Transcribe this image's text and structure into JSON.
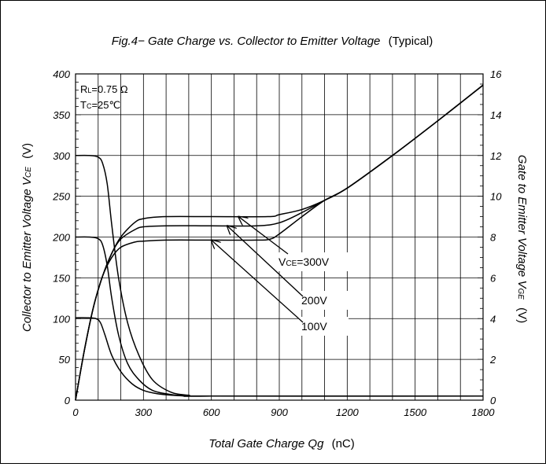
{
  "chart_data": {
    "type": "line",
    "title": "Fig.4− Gate Charge vs. Collector to Emitter Voltage",
    "title_suffix": "(Typical)",
    "xlabel_main": "Total Gate Charge Qg",
    "xlabel_unit": "(nC)",
    "ylabel_left_main": "Collector to Emitter Voltage V",
    "ylabel_left_sub": "CE",
    "ylabel_left_unit": "(V)",
    "ylabel_right_main": "Gate to Emitter Voltage V",
    "ylabel_right_sub": "GE",
    "ylabel_right_unit": "(V)",
    "xlim": [
      0,
      1800
    ],
    "ylim_left": [
      0,
      400
    ],
    "ylim_right": [
      0,
      16
    ],
    "x_ticks": [
      0,
      300,
      600,
      900,
      1200,
      1500,
      1800
    ],
    "x_tick_labels": [
      "0",
      "300",
      "600",
      "900",
      "1200",
      "1500",
      "1800"
    ],
    "y_left_ticks": [
      0,
      50,
      100,
      150,
      200,
      250,
      300,
      350,
      400
    ],
    "y_left_tick_labels": [
      "0",
      "50",
      "100",
      "150",
      "200",
      "250",
      "300",
      "350",
      "400"
    ],
    "y_right_ticks": [
      0,
      2,
      4,
      6,
      8,
      10,
      12,
      14,
      16
    ],
    "y_right_tick_labels": [
      "0",
      "2",
      "4",
      "6",
      "8",
      "10",
      "12",
      "14",
      "16"
    ],
    "grid": true,
    "conditions": {
      "rl_prefix": "R",
      "rl_sub": "L",
      "rl_value": "=0.75 Ω",
      "tc_prefix": "T",
      "tc_sub": "C",
      "tc_value": "=25℃"
    },
    "series": [
      {
        "axis": "left",
        "x": [
          0,
          60,
          100,
          120,
          140,
          160,
          190,
          230,
          280,
          340,
          420,
          500,
          600,
          1800
        ],
        "y": [
          300,
          300,
          298,
          290,
          265,
          215,
          150,
          95,
          55,
          25,
          10,
          6,
          5,
          5
        ]
      },
      {
        "axis": "left",
        "x": [
          0,
          60,
          100,
          120,
          140,
          160,
          190,
          230,
          280,
          340,
          420,
          500,
          600,
          1800
        ],
        "y": [
          200,
          200,
          198,
          190,
          165,
          125,
          80,
          45,
          25,
          12,
          7,
          5,
          5,
          5
        ]
      },
      {
        "axis": "left",
        "x": [
          0,
          50,
          90,
          110,
          130,
          160,
          200,
          250,
          300,
          360,
          430,
          500,
          600,
          1800
        ],
        "y": [
          101,
          101,
          100,
          95,
          80,
          55,
          35,
          20,
          12,
          8,
          6,
          5,
          5,
          5
        ]
      },
      {
        "axis": "right",
        "x": [
          0,
          40,
          80,
          120,
          160,
          200,
          260,
          300,
          400,
          600,
          850,
          900,
          1000,
          1100,
          1200,
          1400,
          1600,
          1800
        ],
        "y": [
          0,
          2.5,
          4.6,
          6.1,
          7.2,
          8.0,
          8.7,
          8.9,
          9.0,
          9.0,
          9.0,
          9.1,
          9.35,
          9.8,
          10.4,
          12.0,
          13.7,
          15.45
        ]
      },
      {
        "axis": "right",
        "x": [
          0,
          40,
          80,
          120,
          160,
          200,
          260,
          300,
          400,
          600,
          800,
          900,
          1000,
          1100,
          1200,
          1400,
          1600,
          1800
        ],
        "y": [
          0,
          2.5,
          4.6,
          6.1,
          7.2,
          7.9,
          8.35,
          8.5,
          8.55,
          8.55,
          8.55,
          8.7,
          9.2,
          9.8,
          10.4,
          12.0,
          13.7,
          15.45
        ]
      },
      {
        "axis": "right",
        "x": [
          0,
          40,
          80,
          120,
          160,
          200,
          260,
          300,
          400,
          600,
          800,
          860,
          900,
          1000,
          1100,
          1200,
          1400,
          1600,
          1800
        ],
        "y": [
          0,
          2.5,
          4.6,
          6.1,
          7.0,
          7.5,
          7.75,
          7.8,
          7.85,
          7.85,
          7.85,
          7.9,
          8.15,
          9.0,
          9.8,
          10.4,
          12.0,
          13.7,
          15.45
        ]
      }
    ],
    "annotations": [
      {
        "text_prefix": "V",
        "text_sub": "CE",
        "text_value": "=300V",
        "arrow_to": [
          720,
          9.0
        ]
      },
      {
        "text": "200V",
        "arrow_to": [
          670,
          8.55
        ]
      },
      {
        "text": "100V",
        "arrow_to": [
          600,
          7.85
        ]
      }
    ]
  }
}
